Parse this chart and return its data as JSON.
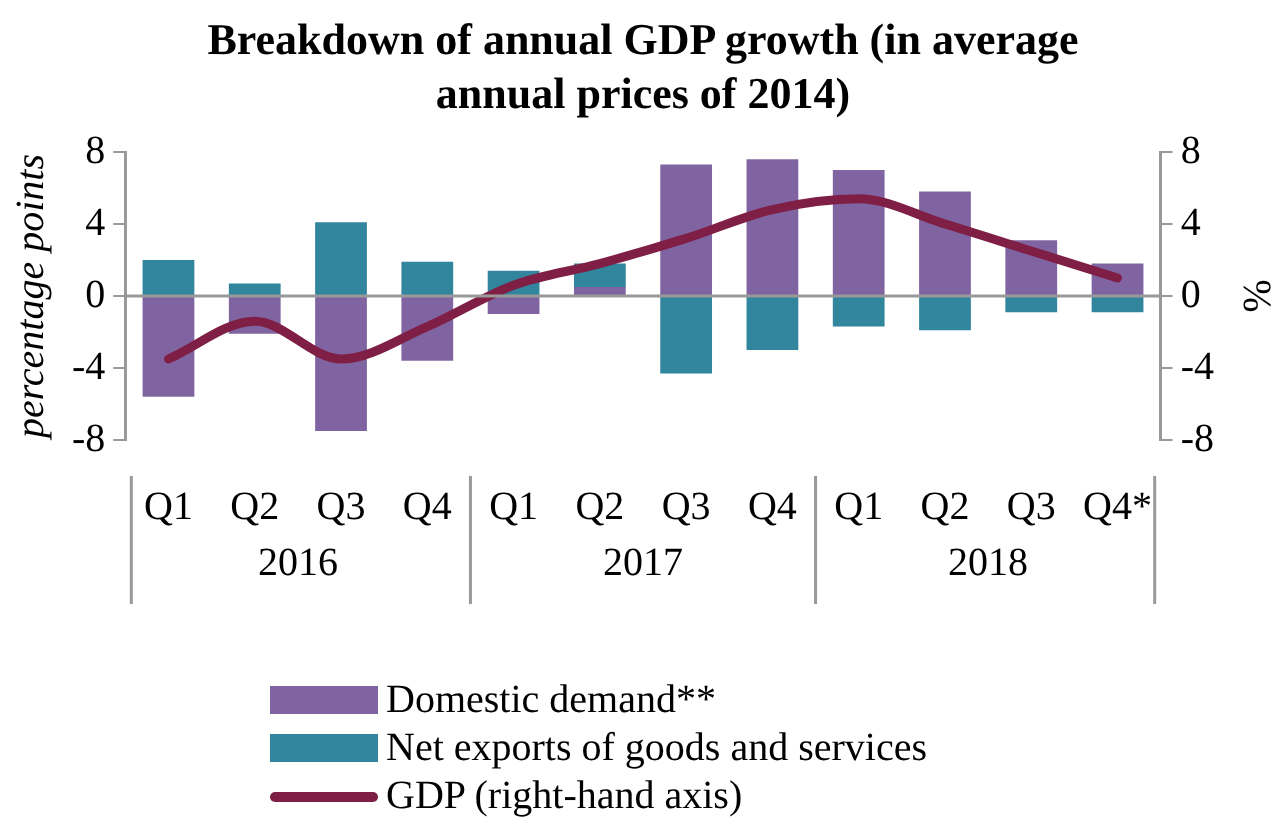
{
  "chart_data": {
    "type": "bar",
    "title": "Breakdown of annual GDP growth (in average annual prices of  2014)",
    "ylabel": "percentage points",
    "y2label": "%",
    "categories": [
      "Q1",
      "Q2",
      "Q3",
      "Q4",
      "Q1",
      "Q2",
      "Q3",
      "Q4",
      "Q1",
      "Q2",
      "Q3",
      "Q4*"
    ],
    "annotations": [
      "2016",
      "2017",
      "2018"
    ],
    "stacked": true,
    "series": [
      {
        "name": "Domestic demand**",
        "color": "#8064a2",
        "values": [
          -5.6,
          -2.1,
          -7.5,
          -3.6,
          -1.0,
          0.5,
          7.3,
          7.6,
          7.0,
          5.8,
          3.1,
          1.8
        ]
      },
      {
        "name": "Net exports of goods and services",
        "color": "#31859c",
        "values": [
          2.0,
          0.7,
          4.1,
          1.9,
          1.4,
          1.3,
          -4.3,
          -3.0,
          -1.7,
          -1.9,
          -0.9,
          -0.9
        ]
      },
      {
        "name": "GDP (right-hand axis)",
        "type": "line",
        "axis": "y2",
        "color": "#7f1f45",
        "values": [
          -3.5,
          -1.4,
          -3.5,
          -1.7,
          0.6,
          1.8,
          3.2,
          4.8,
          5.4,
          4.0,
          2.5,
          1.0
        ]
      }
    ],
    "ylim": [
      -8,
      8
    ],
    "yticks": [
      -8,
      -4,
      0,
      4,
      8
    ],
    "y2lim": [
      -8,
      8
    ],
    "y2ticks": [
      -8,
      -4,
      0,
      4,
      8
    ],
    "ref_lines": [
      {
        "axis": "y",
        "value": 0,
        "color": "#999999"
      }
    ],
    "grid": false,
    "legend": "bottom",
    "marker": "none"
  }
}
